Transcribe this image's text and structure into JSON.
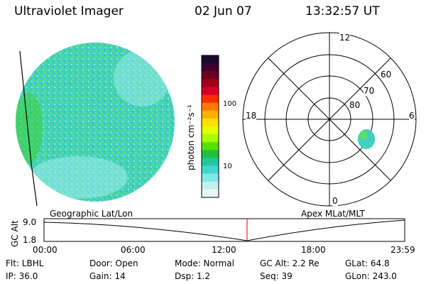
{
  "header": {
    "title": "Ultraviolet Imager",
    "date": "02 Jun 07",
    "time": "13:32:57 UT"
  },
  "colorbar": {
    "unit_label": "photon cm⁻²s⁻¹",
    "ticks": [
      "100",
      "10"
    ],
    "colors": [
      "#1a0a2e",
      "#3b0033",
      "#6b0020",
      "#a00018",
      "#d4002a",
      "#ff2b00",
      "#ff7a00",
      "#ffb000",
      "#ffe000",
      "#e6ff00",
      "#a6ff00",
      "#58e000",
      "#20c040",
      "#20c8a0",
      "#40d8d0",
      "#80e8e8",
      "#c0f0f0",
      "#e8f8f8"
    ]
  },
  "polar": {
    "mlt_labels": {
      "top": "12",
      "left": "18",
      "right": "6",
      "bottom": "0"
    },
    "lat_labels": [
      "60",
      "70",
      "80"
    ]
  },
  "timeline": {
    "left_label": "Geographic Lat/Lon",
    "right_label": "Apex MLat/MLT",
    "y_axis_title": "GC Alt",
    "y_ticks": [
      "9.0",
      "1.8"
    ],
    "x_ticks": [
      "00:00",
      "06:00",
      "12:00",
      "18:00",
      "23:59"
    ],
    "marker_color": "#dd0000"
  },
  "info": {
    "flt": "Flt: LBHL",
    "door": "Door: Open",
    "mode": "Mode: Normal",
    "gcalt": "GC Alt: 2.2 Re",
    "glat": "GLat:  64.8",
    "ip": "IP: 36.0",
    "gain": "Gain: 14",
    "dsp": "Dsp:     1.2",
    "seq": "Seq: 39",
    "glon": "GLon: 243.0"
  }
}
